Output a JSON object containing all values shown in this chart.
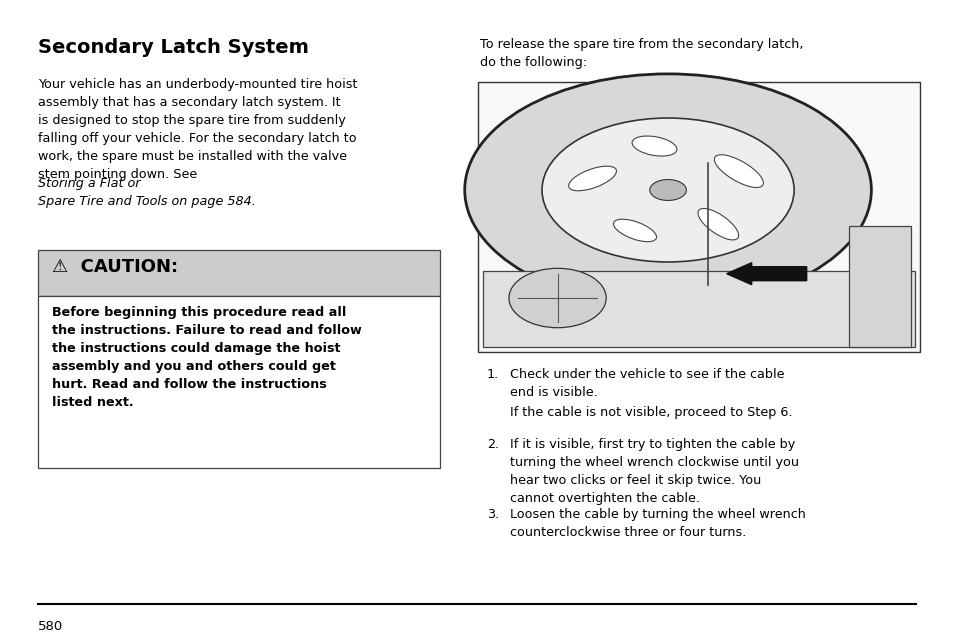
{
  "bg_color": "#ffffff",
  "title": "Secondary Latch System",
  "title_fontsize": 14,
  "body_fontsize": 9.2,
  "caution_header_bg": "#cccccc",
  "caution_header_text": "⚠  CAUTION:",
  "caution_header_fontsize": 13,
  "caution_body_text": "Before beginning this procedure read all\nthe instructions. Failure to read and follow\nthe instructions could damage the hoist\nassembly and you and others could get\nhurt. Read and follow the instructions\nlisted next.",
  "caution_body_fontsize": 9.2,
  "right_intro_text": "To release the spare tire from the secondary latch,\ndo the following:",
  "step1_text": "Check under the vehicle to see if the cable\nend is visible.",
  "step1_sub": "If the cable is not visible, proceed to Step 6.",
  "step2_text": "If it is visible, first try to tighten the cable by\nturning the wheel wrench clockwise until you\nhear two clicks or feel it skip twice. You\ncannot overtighten the cable.",
  "step3_text": "Loosen the cable by turning the wheel wrench\ncounterclockwise three or four turns.",
  "page_number": "580"
}
